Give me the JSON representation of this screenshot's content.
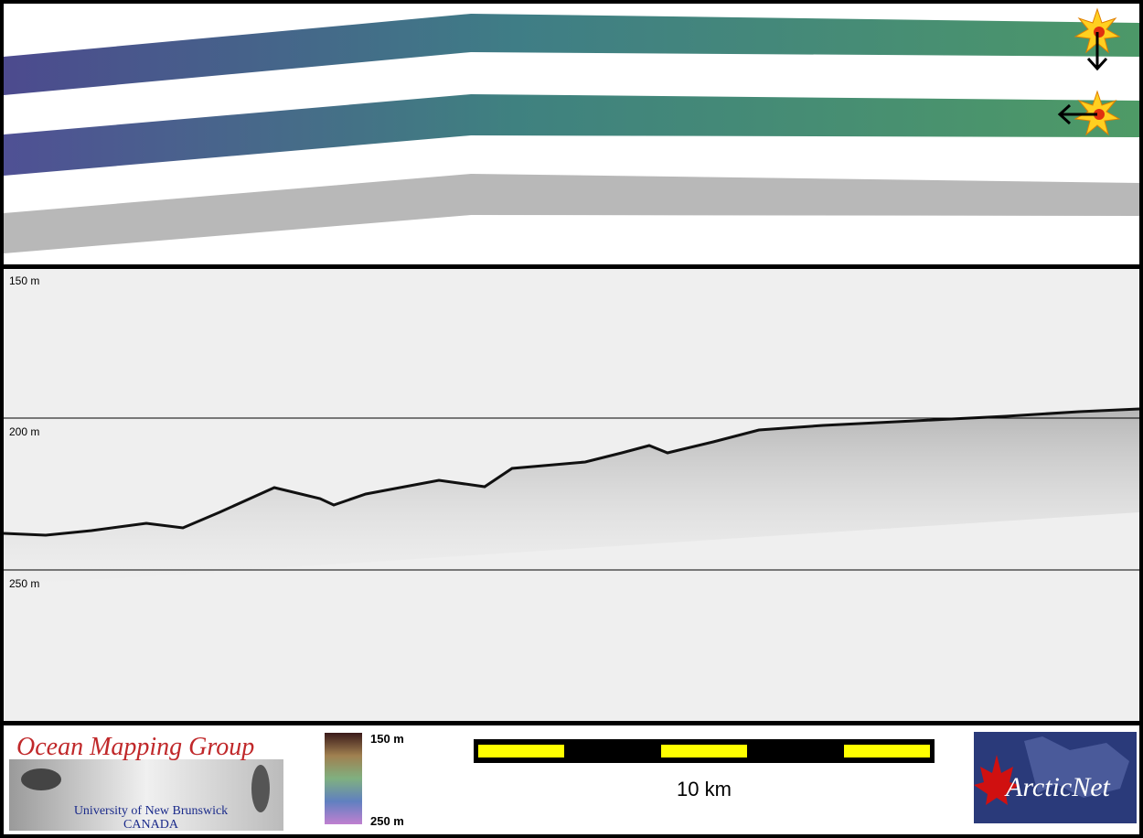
{
  "profile": {
    "depth_labels": [
      "150 m",
      "200 m",
      "250 m"
    ]
  },
  "footer": {
    "logo": {
      "title": "Ocean Mapping Group",
      "institution": "University of New Brunswick",
      "country": "CANADA"
    },
    "colorbar": {
      "top_label": "150 m",
      "bottom_label": "250 m"
    },
    "scale_bar": {
      "label": "10 km"
    },
    "partner_logo": {
      "text": "ArcticNet"
    }
  }
}
